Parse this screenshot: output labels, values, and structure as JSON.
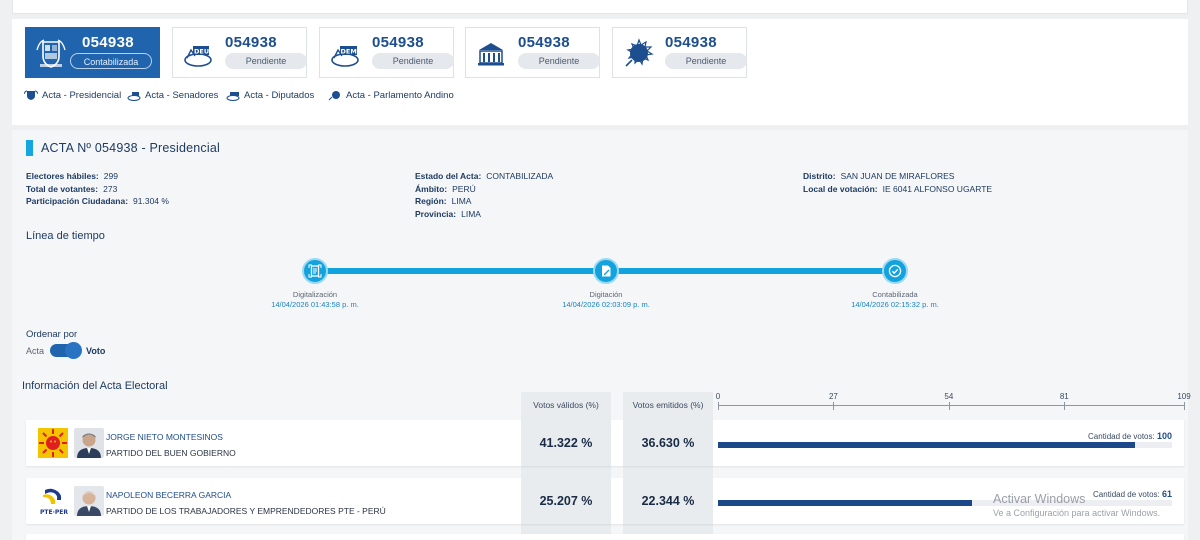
{
  "actas": [
    {
      "number": "054938",
      "status": "Contabilizada",
      "icon": "peru-shield-icon",
      "active": true
    },
    {
      "number": "054938",
      "status": "Pendiente",
      "icon": "deu-ballot-icon",
      "active": false
    },
    {
      "number": "054938",
      "status": "Pendiente",
      "icon": "dem-ballot-icon",
      "active": false
    },
    {
      "number": "054938",
      "status": "Pendiente",
      "icon": "congress-building-icon",
      "active": false
    },
    {
      "number": "054938",
      "status": "Pendiente",
      "icon": "andean-parliament-icon",
      "active": false
    }
  ],
  "acta_links": [
    {
      "label": "Acta - Presidencial"
    },
    {
      "label": "Acta - Senadores"
    },
    {
      "label": "Acta - Diputados"
    },
    {
      "label": "Acta - Parlamento Andino"
    }
  ],
  "detail": {
    "title": "ACTA Nº 054938 - Presidencial",
    "col1": [
      {
        "label": "Electores hábiles:",
        "value": "299"
      },
      {
        "label": "Total de votantes:",
        "value": "273"
      },
      {
        "label": "Participación Ciudadana:",
        "value": "91.304 %"
      }
    ],
    "col2": [
      {
        "label": "Estado del Acta:",
        "value": "CONTABILIZADA"
      },
      {
        "label": "Ámbito:",
        "value": "PERÚ"
      },
      {
        "label": "Región:",
        "value": "LIMA"
      },
      {
        "label": "Provincia:",
        "value": "LIMA"
      }
    ],
    "col3": [
      {
        "label": "Distrito:",
        "value": "SAN JUAN DE MIRAFLORES"
      },
      {
        "label": "Local de votación:",
        "value": "IE 6041 ALFONSO UGARTE"
      }
    ]
  },
  "timeline": {
    "title": "Línea de tiempo",
    "steps": [
      {
        "label": "Digitalización",
        "date": "14/04/2026 01:43:58 p. m.",
        "icon": "scan-document-icon"
      },
      {
        "label": "Digitación",
        "date": "14/04/2026 02:03:09 p. m.",
        "icon": "edit-document-icon"
      },
      {
        "label": "Contabilizada",
        "date": "14/04/2026 02:15:32 p. m.",
        "icon": "check-circle-icon"
      }
    ]
  },
  "order": {
    "label": "Ordenar por",
    "option_off": "Acta",
    "option_on": "Voto",
    "selected": "Voto"
  },
  "results": {
    "title": "Información del Acta Electoral",
    "col_valid": "Votos válidos (%)",
    "col_emitted": "Votos emitidos (%)",
    "axis_ticks": [
      "0",
      "27",
      "54",
      "81",
      "109"
    ],
    "axis_max": 109,
    "qty_label": "Cantidad de votos:",
    "candidates": [
      {
        "name": "JORGE NIETO MONTESINOS",
        "party": "PARTIDO DEL BUEN GOBIERNO",
        "valid_pct": "41.322 %",
        "emitted_pct": "36.630 %",
        "votes": "100",
        "votes_num": 100,
        "logo": "sun-party-logo-icon"
      },
      {
        "name": "NAPOLEON BECERRA GARCIA",
        "party": "PARTIDO DE LOS TRABAJADORES Y EMPRENDEDORES PTE - PERÚ",
        "valid_pct": "25.207 %",
        "emitted_pct": "22.344 %",
        "votes": "61",
        "votes_num": 61,
        "logo": "pte-party-logo-icon"
      }
    ]
  },
  "watermark": {
    "line1": "Activar Windows",
    "line2": "Ve a Configuración para activar Windows."
  },
  "colors": {
    "primary": "#1f64ad",
    "accent": "#12a3df",
    "bar": "#1b4888"
  }
}
